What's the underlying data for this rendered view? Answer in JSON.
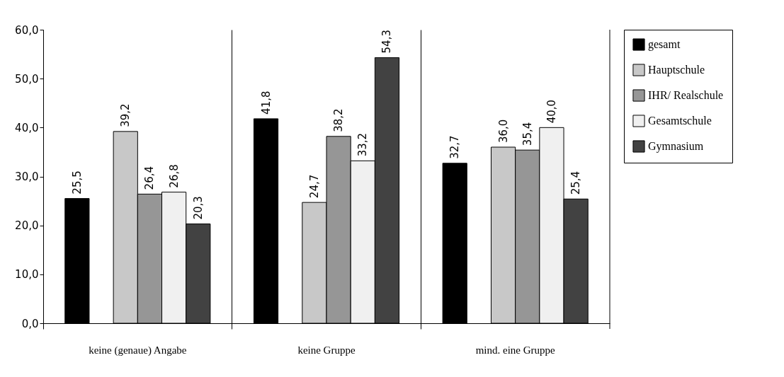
{
  "chart_data": {
    "type": "bar",
    "categories": [
      "keine (genaue) Angabe",
      "keine Gruppe",
      "mind. eine Gruppe"
    ],
    "series": [
      {
        "name": "gesamt",
        "color": "#000000",
        "values": [
          25.5,
          41.8,
          32.7
        ],
        "value_labels": [
          "25,5",
          "41,8",
          "32,7"
        ]
      },
      {
        "name": "Hauptschule",
        "color": "#c8c8c8",
        "values": [
          39.2,
          24.7,
          36.0
        ],
        "value_labels": [
          "39,2",
          "24,7",
          "36,0"
        ]
      },
      {
        "name": "IHR/ Realschule",
        "color": "#969696",
        "values": [
          26.4,
          38.2,
          35.4
        ],
        "value_labels": [
          "26,4",
          "38,2",
          "35,4"
        ]
      },
      {
        "name": "Gesamtschule",
        "color": "#f0f0f0",
        "values": [
          26.8,
          33.2,
          40.0
        ],
        "value_labels": [
          "26,8",
          "33,2",
          "40,0"
        ]
      },
      {
        "name": "Gymnasium",
        "color": "#424242",
        "values": [
          20.3,
          54.3,
          25.4
        ],
        "value_labels": [
          "20,3",
          "54,3",
          "25,4"
        ]
      }
    ],
    "ylim": [
      0,
      60
    ],
    "yticks": [
      {
        "value": 0,
        "label": "0,0"
      },
      {
        "value": 10,
        "label": "10,0"
      },
      {
        "value": 20,
        "label": "20,0"
      },
      {
        "value": 30,
        "label": "30,0"
      },
      {
        "value": 40,
        "label": "40,0"
      },
      {
        "value": 50,
        "label": "50,0"
      },
      {
        "value": 60,
        "label": "60,0"
      }
    ],
    "grid": "x",
    "legend": "right"
  }
}
